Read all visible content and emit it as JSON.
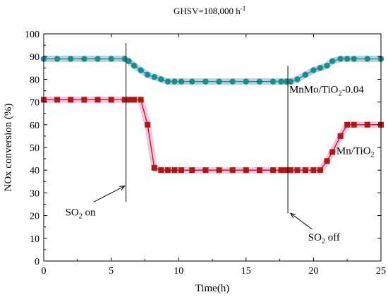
{
  "chart_data": {
    "type": "line",
    "title_main": "GHSV=108,000 h",
    "title_sup": "-1",
    "xlabel": "Time(h)",
    "ylabel": "NOx conversion (%)",
    "xlim": [
      0,
      25
    ],
    "ylim": [
      0,
      100
    ],
    "xticks": [
      0,
      5,
      10,
      15,
      20,
      25
    ],
    "yticks": [
      0,
      10,
      20,
      30,
      40,
      50,
      60,
      70,
      80,
      90,
      100
    ],
    "grid": false,
    "series": [
      {
        "name": "MnMo/TiO",
        "name_sub": "2",
        "name_suffix": "-0.04",
        "color": "#1b8c8c",
        "halo": "#a8c8e0",
        "marker": "circle",
        "x": [
          0,
          1,
          2,
          3,
          4,
          5,
          6,
          6.3,
          6.7,
          7.2,
          7.7,
          8.2,
          8.7,
          9.2,
          9.7,
          10.2,
          11,
          12,
          13,
          14,
          15,
          16,
          17,
          17.6,
          18,
          18.3,
          18.8,
          19.4,
          20,
          20.5,
          21,
          21.4,
          22,
          22.5,
          23,
          24,
          25
        ],
        "y": [
          89,
          89,
          89,
          89,
          89,
          89,
          89,
          88,
          86,
          84,
          82,
          81,
          80,
          79,
          79,
          79,
          79,
          79,
          79,
          79,
          79,
          79,
          79,
          79,
          79,
          79,
          80,
          82,
          84,
          85,
          86,
          88,
          89,
          89,
          89,
          89,
          89
        ]
      },
      {
        "name": "Mn/TiO",
        "name_sub": "2",
        "name_suffix": "",
        "color": "#b01818",
        "halo": "#f2b8d8",
        "marker": "square",
        "x": [
          0,
          1,
          2,
          3,
          4,
          5,
          6,
          6.3,
          6.7,
          7.2,
          7.7,
          8.2,
          8.7,
          9.2,
          9.7,
          10.2,
          11,
          12,
          13,
          14,
          15,
          16,
          17,
          17.6,
          18,
          18.3,
          18.8,
          19.4,
          20,
          20.5,
          21,
          21.4,
          22,
          22.5,
          23,
          24,
          25
        ],
        "y": [
          71,
          71,
          71,
          71,
          71,
          71,
          71,
          71,
          71,
          71,
          60,
          41,
          40,
          40,
          40,
          40,
          40,
          40,
          40,
          40,
          40,
          40,
          40,
          40,
          40,
          40,
          40,
          40,
          40,
          40,
          44,
          48,
          55,
          60,
          60,
          60,
          60
        ]
      }
    ],
    "event_lines": [
      {
        "x": 6.1,
        "y_from": 26,
        "y_to": 96
      },
      {
        "x": 18.1,
        "y_from": 21,
        "y_to": 86
      }
    ],
    "annotations": [
      {
        "main": "SO",
        "sub": "2",
        "rest": " on",
        "anchor_x": 1.6,
        "anchor_y": 20,
        "arrow_from": [
          3.7,
          26
        ],
        "arrow_to": [
          6.0,
          33
        ]
      },
      {
        "main": "SO",
        "sub": "2",
        "rest": " off",
        "anchor_x": 19.6,
        "anchor_y": 9,
        "arrow_from": [
          19.9,
          14
        ],
        "arrow_to": [
          18.3,
          21
        ]
      }
    ],
    "series_labels": [
      {
        "series": 0,
        "anchor_x": 18.2,
        "anchor_y": 74
      },
      {
        "series": 1,
        "anchor_x": 21.7,
        "anchor_y": 47
      }
    ]
  }
}
